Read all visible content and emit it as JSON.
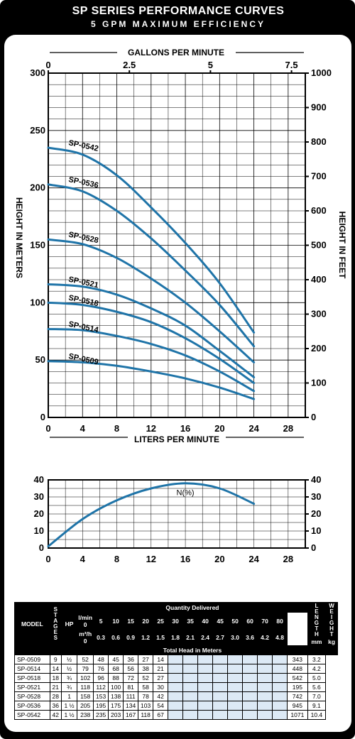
{
  "title": "SP SERIES PERFORMANCE CURVES",
  "subtitle": "5 GPM MAXIMUM EFFICIENCY",
  "chart_data": [
    {
      "type": "line",
      "xlabel": "LITERS PER MINUTE",
      "x2label": "GALLONS PER MINUTE",
      "ylabel": "HEIGHT IN METERS",
      "y2label": "HEIGHT IN FEET",
      "xlim": [
        0,
        30
      ],
      "ylim": [
        0,
        300
      ],
      "x2lim": [
        0,
        7.925
      ],
      "y2lim": [
        0,
        1000
      ],
      "x_ticks": [
        "0",
        "4",
        "8",
        "12",
        "16",
        "20",
        "24",
        "28"
      ],
      "x2_ticks": [
        "0",
        "2.5",
        "5",
        "7.5"
      ],
      "y_ticks": [
        "0",
        "50",
        "100",
        "150",
        "200",
        "250",
        "300"
      ],
      "y2_ticks": [
        "0",
        "100",
        "200",
        "300",
        "400",
        "500",
        "600",
        "700",
        "800",
        "900",
        "1000"
      ],
      "grid": true,
      "series": [
        {
          "name": "SP-0542",
          "x": [
            0,
            4,
            8,
            12,
            16,
            20,
            24
          ],
          "values": [
            235,
            229,
            211,
            183,
            152,
            117,
            74
          ]
        },
        {
          "name": "SP-0536",
          "x": [
            0,
            4,
            8,
            12,
            16,
            20,
            24
          ],
          "values": [
            203,
            197,
            180,
            156,
            128,
            98,
            62
          ]
        },
        {
          "name": "SP-0528",
          "x": [
            0,
            4,
            8,
            12,
            16,
            20,
            24
          ],
          "values": [
            155,
            151,
            139,
            121,
            100,
            75,
            48
          ]
        },
        {
          "name": "SP-0521",
          "x": [
            0,
            4,
            8,
            12,
            16,
            20,
            24
          ],
          "values": [
            116,
            114,
            107,
            95,
            80,
            58,
            35
          ]
        },
        {
          "name": "SP-0518",
          "x": [
            0,
            4,
            8,
            12,
            16,
            20,
            24
          ],
          "values": [
            100,
            98,
            92,
            83,
            69,
            51,
            30
          ]
        },
        {
          "name": "SP-0514",
          "x": [
            0,
            4,
            8,
            12,
            16,
            20,
            24
          ],
          "values": [
            77,
            76,
            71,
            64,
            54,
            40,
            23
          ]
        },
        {
          "name": "SP-0509",
          "x": [
            0,
            4,
            8,
            12,
            16,
            20,
            24
          ],
          "values": [
            49,
            48,
            45,
            40,
            34,
            26,
            16
          ]
        }
      ]
    },
    {
      "type": "line",
      "xlim": [
        0,
        30
      ],
      "ylim": [
        0,
        40
      ],
      "x_ticks": [
        "0",
        "4",
        "8",
        "12",
        "16",
        "20",
        "24",
        "28"
      ],
      "y_ticks": [
        "0",
        "10",
        "20",
        "30",
        "40"
      ],
      "grid": true,
      "series": [
        {
          "name": "N(%)",
          "x": [
            0,
            4,
            8,
            12,
            16,
            20,
            24
          ],
          "values": [
            1,
            17,
            28,
            35,
            38,
            35,
            26
          ]
        }
      ]
    }
  ],
  "table": {
    "col_model": "MODEL",
    "col_stages": "STAGES",
    "col_hp": "HP",
    "quantity_header": "Quantity Delivered",
    "lmin_label": "l/min",
    "m3h_label": "m³/h",
    "lmin": [
      "0",
      "5",
      "10",
      "15",
      "20",
      "25",
      "30",
      "35",
      "40",
      "45",
      "50",
      "60",
      "70",
      "80"
    ],
    "m3h": [
      "0",
      "0.3",
      "0.6",
      "0.9",
      "1.2",
      "1.5",
      "1.8",
      "2.1",
      "2.4",
      "2.7",
      "3.0",
      "3.6",
      "4.2",
      "4.8"
    ],
    "total_head": "Total Head in Meters",
    "col_length": "LENGTH",
    "length_unit": "mm",
    "col_weight": "WEIGHT",
    "weight_unit": "kg",
    "rows": [
      {
        "model": "SP-0509",
        "stages": "9",
        "hp": "½",
        "head": [
          "52",
          "48",
          "45",
          "36",
          "27",
          "14"
        ],
        "length": "343",
        "weight": "3.2"
      },
      {
        "model": "SP-0514",
        "stages": "14",
        "hp": "½",
        "head": [
          "79",
          "76",
          "68",
          "56",
          "38",
          "21"
        ],
        "length": "448",
        "weight": "4.2"
      },
      {
        "model": "SP-0518",
        "stages": "18",
        "hp": "¾",
        "head": [
          "102",
          "96",
          "88",
          "72",
          "52",
          "27"
        ],
        "length": "542",
        "weight": "5.0"
      },
      {
        "model": "SP-0521",
        "stages": "21",
        "hp": "¾",
        "head": [
          "118",
          "112",
          "100",
          "81",
          "58",
          "30"
        ],
        "length": "195",
        "weight": "5.6"
      },
      {
        "model": "SP-0528",
        "stages": "28",
        "hp": "1",
        "head": [
          "158",
          "153",
          "138",
          "111",
          "78",
          "42"
        ],
        "length": "742",
        "weight": "7.0"
      },
      {
        "model": "SP-0536",
        "stages": "36",
        "hp": "1 ½",
        "head": [
          "205",
          "195",
          "175",
          "134",
          "103",
          "54"
        ],
        "length": "945",
        "weight": "9.1"
      },
      {
        "model": "SP-0542",
        "stages": "42",
        "hp": "1 ½",
        "head": [
          "238",
          "235",
          "203",
          "167",
          "118",
          "67"
        ],
        "length": "1071",
        "weight": "10.4"
      }
    ]
  },
  "colors": {
    "curve": "#1f74a8",
    "frame": "#000000",
    "shade": "#dce9f5"
  }
}
